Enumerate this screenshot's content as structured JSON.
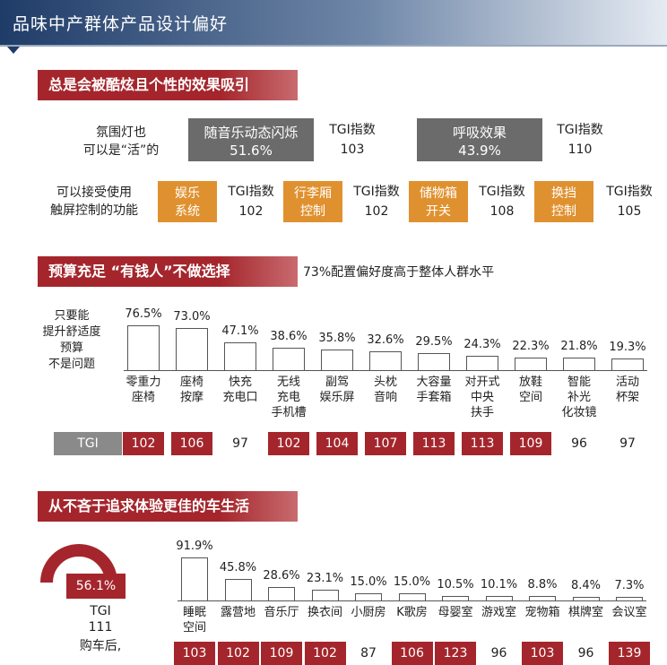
{
  "page_title": "品味中产群体产品设计偏好",
  "section1": {
    "header": "总是会被酷炫且个性的效果吸引",
    "row1_label": [
      "氛围灯也",
      "可以是“活”的"
    ],
    "row1_items": [
      {
        "name": "随音乐动态闪烁",
        "value": "51.6%",
        "tgi_label": "TGI指数",
        "tgi": "103"
      },
      {
        "name": "呼吸效果",
        "value": "43.9%",
        "tgi_label": "TGI指数",
        "tgi": "110"
      }
    ],
    "row2_label": [
      "可以接受使用",
      "触屏控制的功能"
    ],
    "row2_items": [
      {
        "name": [
          "娱乐",
          "系统"
        ],
        "tgi_label": "TGI指数",
        "tgi": "102"
      },
      {
        "name": [
          "行李厢",
          "控制"
        ],
        "tgi_label": "TGI指数",
        "tgi": "102"
      },
      {
        "name": [
          "储物箱",
          "开关"
        ],
        "tgi_label": "TGI指数",
        "tgi": "108"
      },
      {
        "name": [
          "换挡",
          "控制"
        ],
        "tgi_label": "TGI指数",
        "tgi": "105"
      }
    ],
    "colors": {
      "gray": "#6b6b6b",
      "orange": "#e0912f"
    }
  },
  "section2": {
    "header": "预算充足 “有钱人”不做选择",
    "note": "73%配置偏好度高于整体人群水平",
    "side_label": [
      "只要能",
      "提升舒适度",
      "预算",
      "不是问题"
    ],
    "tgi_tag": "TGI"
  },
  "section3": {
    "header": "从不吝于追求体验更佳的车生活",
    "donut_value": "56.1%",
    "donut_tgi_label": "TGI",
    "donut_tgi": "111",
    "side_text": "购车后,"
  },
  "chart_data": [
    {
      "type": "bar",
      "categories": [
        [
          "零重力",
          "座椅"
        ],
        [
          "座椅",
          "按摩"
        ],
        [
          "快充",
          "充电口"
        ],
        [
          "无线",
          "充电",
          "手机槽"
        ],
        [
          "副驾",
          "娱乐屏"
        ],
        [
          "头枕",
          "音响"
        ],
        [
          "大容量",
          "手套箱"
        ],
        [
          "对开式",
          "中央",
          "扶手"
        ],
        [
          "放鞋",
          "空间"
        ],
        [
          "智能",
          "补光",
          "化妆镜"
        ],
        [
          "活动",
          "杯架"
        ]
      ],
      "values": [
        76.5,
        73.0,
        47.1,
        38.6,
        35.8,
        32.6,
        29.5,
        24.3,
        22.3,
        21.8,
        19.3
      ],
      "value_labels": [
        "76.5%",
        "73.0%",
        "47.1%",
        "38.6%",
        "35.8%",
        "32.6%",
        "29.5%",
        "24.3%",
        "22.3%",
        "21.8%",
        "19.3%"
      ],
      "tgi": [
        "102",
        "106",
        "97",
        "102",
        "104",
        "107",
        "113",
        "113",
        "109",
        "96",
        "97"
      ],
      "tgi_highlight": [
        true,
        true,
        false,
        true,
        true,
        true,
        true,
        true,
        true,
        false,
        false
      ],
      "ylim": [
        0,
        100
      ]
    },
    {
      "type": "bar",
      "categories": [
        [
          "睡眠",
          "空间"
        ],
        [
          "露营地"
        ],
        [
          "音乐厅"
        ],
        [
          "换衣间"
        ],
        [
          "小厨房"
        ],
        [
          "K歌房"
        ],
        [
          "母婴室"
        ],
        [
          "游戏室"
        ],
        [
          "宠物箱"
        ],
        [
          "棋牌室"
        ],
        [
          "会议室"
        ]
      ],
      "values": [
        91.9,
        45.8,
        28.6,
        23.1,
        15.0,
        15.0,
        10.5,
        10.1,
        8.8,
        8.4,
        7.3
      ],
      "value_labels": [
        "91.9%",
        "45.8%",
        "28.6%",
        "23.1%",
        "15.0%",
        "15.0%",
        "10.5%",
        "10.1%",
        "8.8%",
        "8.4%",
        "7.3%"
      ],
      "tgi": [
        "103",
        "102",
        "109",
        "102",
        "87",
        "106",
        "123",
        "96",
        "103",
        "96",
        "139"
      ],
      "tgi_highlight": [
        true,
        true,
        true,
        true,
        false,
        true,
        true,
        false,
        true,
        false,
        true
      ],
      "ylim": [
        0,
        100
      ]
    }
  ],
  "accent_color": "#a4262c"
}
